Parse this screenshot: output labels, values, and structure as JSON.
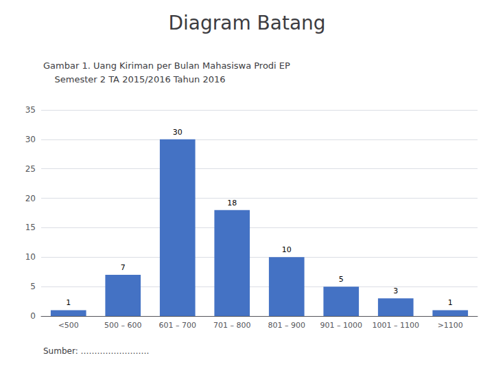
{
  "chart_data": {
    "type": "bar",
    "title": "Diagram Batang",
    "subtitle": "Gambar 1. Uang Kiriman per Bulan Mahasiswa Prodi EP\n    Semester 2 TA 2015/2016 Tahun 2016",
    "annotations": [
      "Sumber: ……………………."
    ],
    "categories": [
      "<500",
      "500 – 600",
      "601 – 700",
      "701 – 800",
      "801 – 900",
      "901 – 1000",
      "1001 – 1100",
      ">1100"
    ],
    "values": [
      1,
      7,
      30,
      18,
      10,
      5,
      3,
      1
    ],
    "color": "#4472C4",
    "ylim": [
      0,
      35
    ],
    "yticks": [
      0,
      5,
      10,
      15,
      20,
      25,
      30,
      35
    ],
    "grid": true,
    "data_labels": true
  }
}
